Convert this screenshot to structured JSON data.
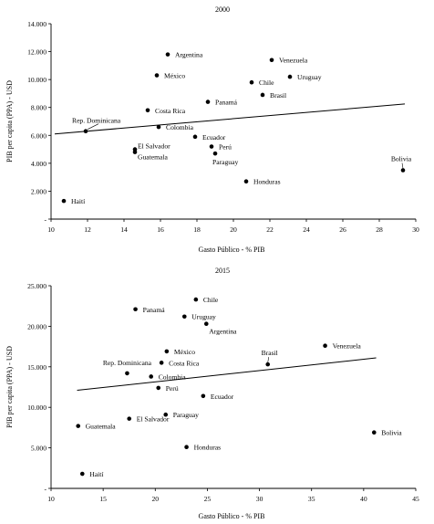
{
  "chart_data": [
    {
      "type": "scatter",
      "title": "2000",
      "xlabel": "Gasto Público - % PIB",
      "ylabel": "PIB per capita (PPA) - USD",
      "xlim": [
        10,
        30
      ],
      "ylim": [
        0,
        14000
      ],
      "x_ticks": [
        "10",
        "12",
        "14",
        "16",
        "18",
        "20",
        "22",
        "24",
        "26",
        "28",
        "30"
      ],
      "y_ticks": [
        "-",
        "2.000",
        "4.000",
        "6.000",
        "8.000",
        "10.000",
        "12.000",
        "14.000"
      ],
      "grid": false,
      "legend": "none",
      "trendline": {
        "type": "linear",
        "x": [
          10.2,
          29.4
        ],
        "y": [
          6100,
          8250
        ]
      },
      "points": [
        {
          "label": "Argentina",
          "x": 16.4,
          "y": 11800
        },
        {
          "label": "México",
          "x": 15.8,
          "y": 10300
        },
        {
          "label": "Venezuela",
          "x": 22.1,
          "y": 11400
        },
        {
          "label": "Uruguay",
          "x": 23.1,
          "y": 10200
        },
        {
          "label": "Chile",
          "x": 21.0,
          "y": 9800
        },
        {
          "label": "Brasil",
          "x": 21.6,
          "y": 8900
        },
        {
          "label": "Panamá",
          "x": 18.6,
          "y": 8400
        },
        {
          "label": "Costa Rica",
          "x": 15.3,
          "y": 7800
        },
        {
          "label": "Rep. Dominicana",
          "x": 11.9,
          "y": 6300
        },
        {
          "label": "Colombia",
          "x": 15.9,
          "y": 6600
        },
        {
          "label": "Ecuador",
          "x": 17.9,
          "y": 5900
        },
        {
          "label": "Perú",
          "x": 18.8,
          "y": 5200
        },
        {
          "label": "Paraguay",
          "x": 19.0,
          "y": 4700
        },
        {
          "label": "El Salvador",
          "x": 14.6,
          "y": 5000
        },
        {
          "label": "Guatemala",
          "x": 14.6,
          "y": 4800
        },
        {
          "label": "Bolivia",
          "x": 29.3,
          "y": 3500
        },
        {
          "label": "Honduras",
          "x": 20.7,
          "y": 2700
        },
        {
          "label": "Haití",
          "x": 10.7,
          "y": 1300
        }
      ]
    },
    {
      "type": "scatter",
      "title": "2015",
      "xlabel": "Gasto Público - % PIB",
      "ylabel": "PIB per capita (PPA) - USD",
      "xlim": [
        10,
        45
      ],
      "ylim": [
        0,
        25000
      ],
      "x_ticks": [
        "10",
        "15",
        "20",
        "25",
        "30",
        "35",
        "40",
        "45"
      ],
      "y_ticks": [
        "-",
        "5.000",
        "10.000",
        "15.000",
        "20.000",
        "25.000"
      ],
      "grid": false,
      "legend": "none",
      "trendline": {
        "type": "linear",
        "x": [
          12.5,
          41.2
        ],
        "y": [
          12100,
          16100
        ]
      },
      "points": [
        {
          "label": "Chile",
          "x": 23.9,
          "y": 23300
        },
        {
          "label": "Panamá",
          "x": 18.1,
          "y": 22100
        },
        {
          "label": "Uruguay",
          "x": 22.8,
          "y": 21200
        },
        {
          "label": "Argentina",
          "x": 24.9,
          "y": 20300
        },
        {
          "label": "Venezuela",
          "x": 36.3,
          "y": 17600
        },
        {
          "label": "México",
          "x": 21.1,
          "y": 16900
        },
        {
          "label": "Costa Rica",
          "x": 20.6,
          "y": 15500
        },
        {
          "label": "Brasil",
          "x": 30.8,
          "y": 15300
        },
        {
          "label": "Rep. Dominicana",
          "x": 17.3,
          "y": 14200
        },
        {
          "label": "Colombia",
          "x": 19.6,
          "y": 13800
        },
        {
          "label": "Perú",
          "x": 20.3,
          "y": 12400
        },
        {
          "label": "Ecuador",
          "x": 24.6,
          "y": 11400
        },
        {
          "label": "Paraguay",
          "x": 21.0,
          "y": 9100
        },
        {
          "label": "El Salvador",
          "x": 17.5,
          "y": 8600
        },
        {
          "label": "Guatemala",
          "x": 12.6,
          "y": 7700
        },
        {
          "label": "Bolivia",
          "x": 41.0,
          "y": 6900
        },
        {
          "label": "Honduras",
          "x": 23.0,
          "y": 5100
        },
        {
          "label": "Haití",
          "x": 13.0,
          "y": 1800
        }
      ]
    }
  ]
}
